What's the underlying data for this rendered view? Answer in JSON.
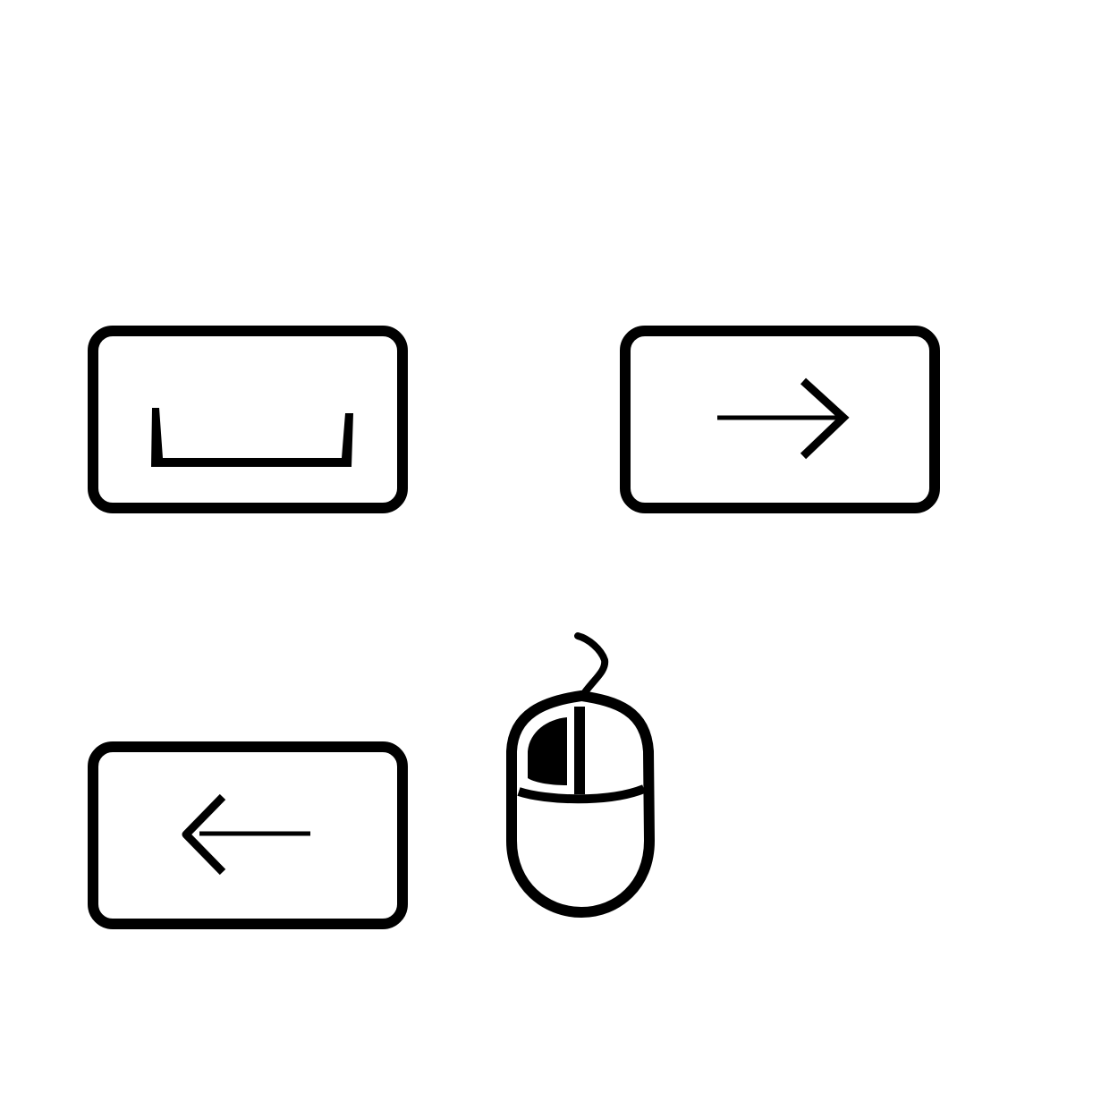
{
  "controls": [
    {
      "key": "space",
      "icon": "space-bar-icon"
    },
    {
      "key": "right-arrow",
      "icon": "arrow-right-icon"
    },
    {
      "key": "left-arrow",
      "icon": "arrow-left-icon"
    },
    {
      "device": "mouse",
      "icon": "mouse-left-click-icon",
      "highlighted_button": "left"
    }
  ],
  "colors": {
    "stroke": "#000000",
    "background": "#ffffff"
  }
}
